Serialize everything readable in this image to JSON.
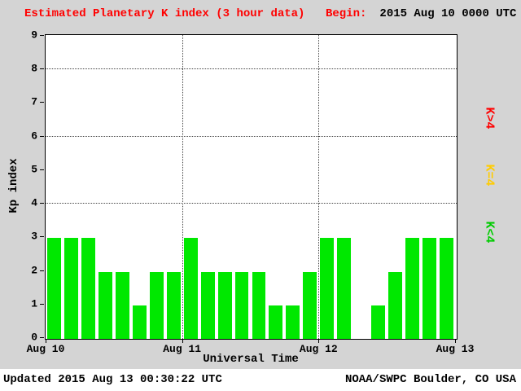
{
  "header": {
    "title": "Estimated Planetary K index (3 hour data)",
    "begin_label": "Begin:",
    "begin_value": "2015 Aug 10 0000 UTC"
  },
  "chart_data": {
    "type": "bar",
    "title": "Estimated Planetary K index (3 hour data)",
    "xlabel": "Universal Time",
    "ylabel": "Kp index",
    "ylim": [
      0,
      9
    ],
    "y_ticks": [
      0,
      1,
      2,
      3,
      4,
      5,
      6,
      7,
      8,
      9
    ],
    "x_tick_labels": [
      "Aug 10",
      "Aug 11",
      "Aug 12",
      "Aug 13"
    ],
    "bin_hours": 3,
    "bars_per_day": 8,
    "values": [
      3,
      3,
      3,
      2,
      2,
      1,
      2,
      2,
      3,
      2,
      2,
      2,
      2,
      1,
      1,
      2,
      3,
      3,
      0,
      1,
      2,
      3,
      3,
      3
    ],
    "bar_color": "#00e800",
    "h_gridlines": [
      4,
      6,
      8
    ],
    "v_gridlines_at_day": [
      1,
      2
    ],
    "grid": "dotted",
    "legend_position": "right",
    "legend": [
      {
        "label": "K>4",
        "color": "#ff0000"
      },
      {
        "label": "K=4",
        "color": "#ffcc00"
      },
      {
        "label": "K<4",
        "color": "#00cc00"
      }
    ]
  },
  "footer": {
    "updated": "Updated 2015 Aug 13 00:30:22 UTC",
    "attribution": "NOAA/SWPC Boulder, CO USA"
  },
  "colors": {
    "title": "#ff0000",
    "background": "#d4d4d4",
    "plot_background": "#ffffff",
    "bar": "#00e800"
  }
}
